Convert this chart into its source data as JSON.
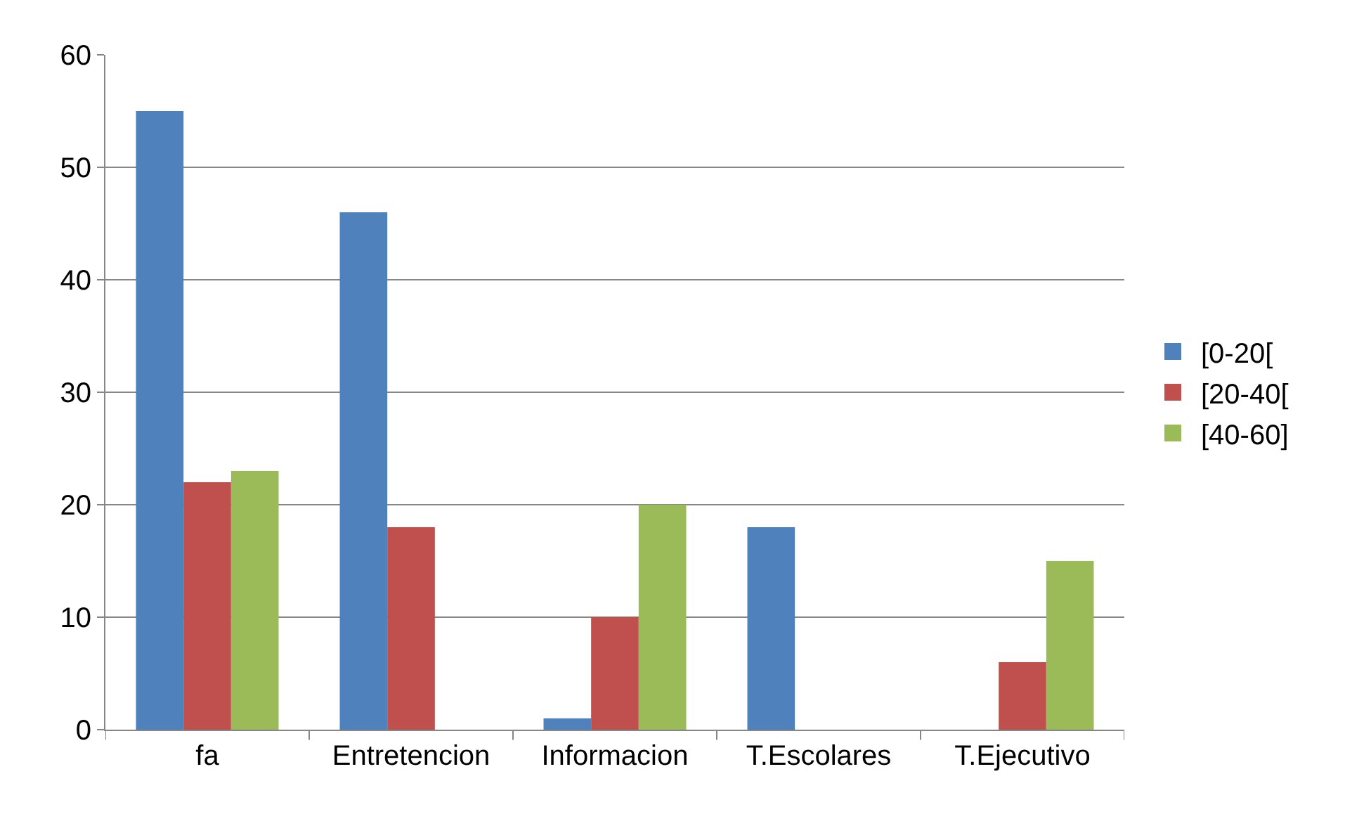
{
  "chart_data": {
    "type": "bar",
    "categories": [
      "fa",
      "Entretencion",
      "Informacion",
      "T.Escolares",
      "T.Ejecutivo"
    ],
    "series": [
      {
        "name": "[0-20[",
        "color": "#4f81bd",
        "values": [
          55,
          46,
          1,
          18,
          0
        ]
      },
      {
        "name": "[20-40[",
        "color": "#c0504d",
        "values": [
          22,
          18,
          10,
          0,
          6
        ]
      },
      {
        "name": "[40-60]",
        "color": "#9bbb59",
        "values": [
          23,
          0,
          20,
          0,
          15
        ]
      }
    ],
    "ylim": [
      0,
      60
    ],
    "yticks": [
      0,
      10,
      20,
      30,
      40,
      50,
      60
    ],
    "grid": "y",
    "legend": "right"
  }
}
